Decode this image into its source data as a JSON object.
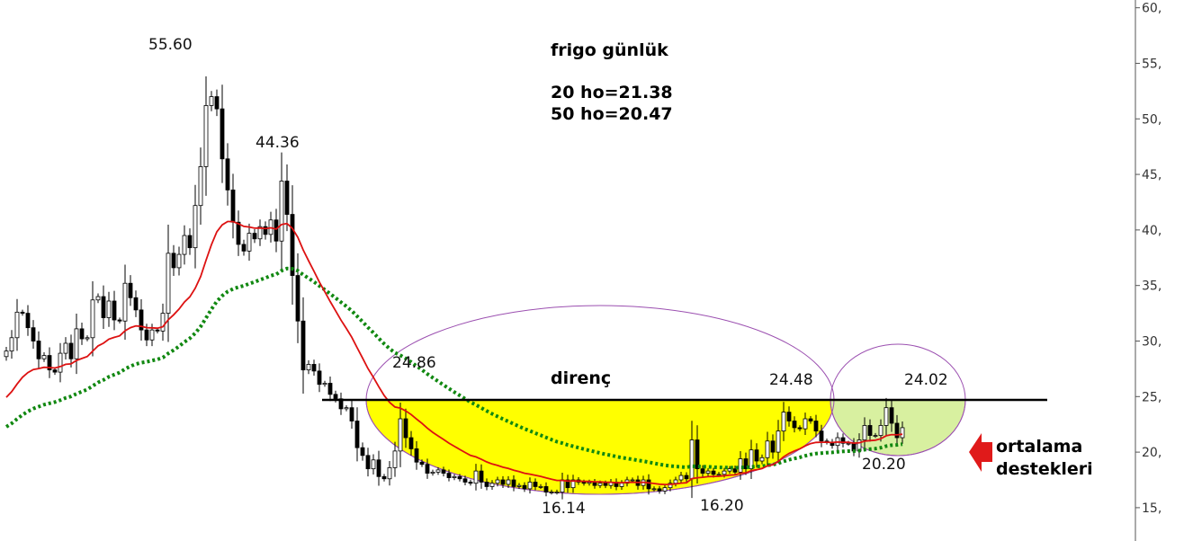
{
  "chart_data": {
    "type": "candlestick",
    "title": "frigo günlük",
    "indicators": [
      {
        "label": "20 ho=21.38",
        "name": "20 ho",
        "value": 21.38,
        "color": "#dd1111",
        "style": "solid"
      },
      {
        "label": "50 ho=20.47",
        "name": "50 ho",
        "value": 20.47,
        "color": "#118811",
        "style": "dotted"
      }
    ],
    "yaxis": {
      "ticks": [
        "60,",
        "55,",
        "50,",
        "45,",
        "40,",
        "35,",
        "30,",
        "25,",
        "20,",
        "15,"
      ],
      "tick_values": [
        60,
        55,
        50,
        45,
        40,
        35,
        30,
        25,
        20,
        15
      ],
      "range": [
        12,
        60.7
      ]
    },
    "resistance": {
      "label": "direnç",
      "price": 24.7
    },
    "annotations": [
      {
        "text": "55.60",
        "price": 55.6
      },
      {
        "text": "44.36",
        "price": 44.36
      },
      {
        "text": "24.86",
        "price": 24.86
      },
      {
        "text": "24.48",
        "price": 24.48
      },
      {
        "text": "24.02",
        "price": 24.02
      },
      {
        "text": "16.14",
        "price": 16.14
      },
      {
        "text": "16.20",
        "price": 16.2
      },
      {
        "text": "20.20",
        "price": 20.2
      }
    ],
    "callout": {
      "line1": "ortalama",
      "line2": "destekleri",
      "arrow_color": "#e01a1a"
    },
    "ellipses": {
      "outline_color": "#9b4fb0",
      "fill_large": "#ffff00",
      "fill_small": "#d8f0a0"
    },
    "closes": [
      29.1,
      30.3,
      32.6,
      32.5,
      31.2,
      30.0,
      28.4,
      28.7,
      27.4,
      27.2,
      28.9,
      29.8,
      28.4,
      31.1,
      30.2,
      30.3,
      33.7,
      34.0,
      32.1,
      33.6,
      31.9,
      31.8,
      35.2,
      33.9,
      32.8,
      31.0,
      30.1,
      31.0,
      30.9,
      32.5,
      37.9,
      36.6,
      37.8,
      39.5,
      38.4,
      42.2,
      45.7,
      51.2,
      52.0,
      50.9,
      46.4,
      43.6,
      40.7,
      38.7,
      38.1,
      39.7,
      39.2,
      40.3,
      39.6,
      40.9,
      39.0,
      44.4,
      41.4,
      35.9,
      31.8,
      27.4,
      27.9,
      27.3,
      26.1,
      26.2,
      25.2,
      24.8,
      23.9,
      24.0,
      22.8,
      20.4,
      19.7,
      18.5,
      19.3,
      17.8,
      17.6,
      18.6,
      20.1,
      23.0,
      21.3,
      20.3,
      19.1,
      18.9,
      18.1,
      18.2,
      18.4,
      18.1,
      17.7,
      17.8,
      17.6,
      17.3,
      17.2,
      18.3,
      17.3,
      16.9,
      17.2,
      17.5,
      17.1,
      17.5,
      16.9,
      17.0,
      16.7,
      17.3,
      16.9,
      16.9,
      16.4,
      16.4,
      16.4,
      17.5,
      16.8,
      17.5,
      17.3,
      17.2,
      17.3,
      17.0,
      17.2,
      17.0,
      17.3,
      16.9,
      17.2,
      17.5,
      17.5,
      17.0,
      17.5,
      16.7,
      16.7,
      16.5,
      16.8,
      17.2,
      17.5,
      17.9,
      17.6,
      21.1,
      18.5,
      18.1,
      18.3,
      18.0,
      18.0,
      18.3,
      18.5,
      18.2,
      19.4,
      18.5,
      20.2,
      19.2,
      19.5,
      21.0,
      20.0,
      21.9,
      23.6,
      22.8,
      22.2,
      22.1,
      23.0,
      22.8,
      21.9,
      21.0,
      20.9,
      20.6,
      21.3,
      20.8,
      20.8,
      20.1,
      21.1,
      22.4,
      21.5,
      21.5,
      22.4,
      24.0,
      22.6,
      21.3,
      22.2
    ]
  }
}
